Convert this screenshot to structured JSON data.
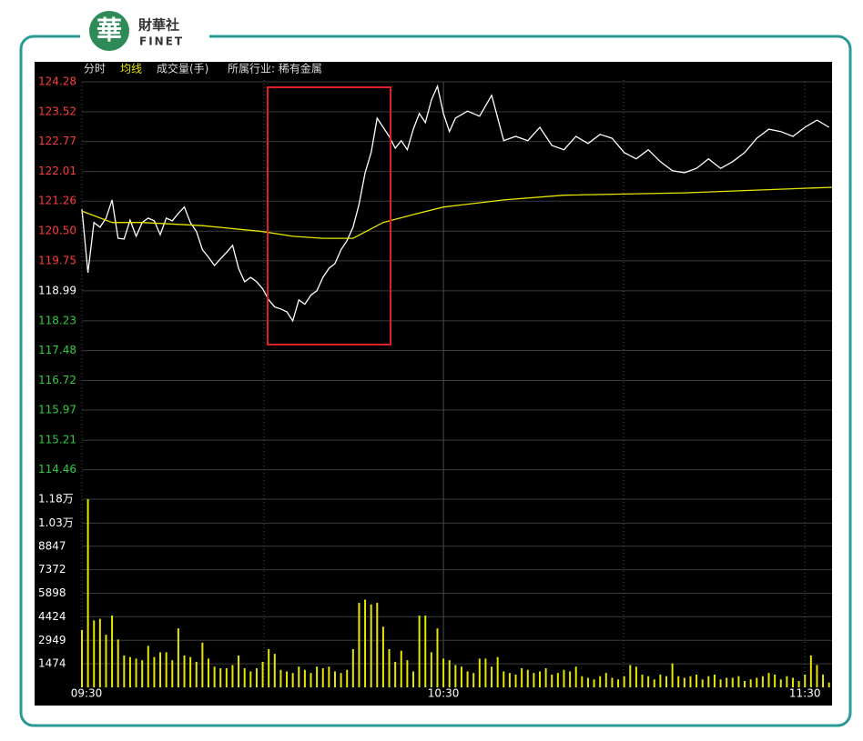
{
  "logo": {
    "emblem": "華",
    "name": "財華社",
    "brand": "FINET"
  },
  "industry": "所属行业: 稀有金属",
  "chart_data": [
    {
      "type": "line",
      "title": "分时",
      "xlim": [
        0,
        124.5
      ],
      "ylim": [
        113.9,
        124.28
      ],
      "yticks": [
        124.28,
        123.52,
        122.77,
        122.01,
        121.26,
        120.5,
        119.75,
        118.99,
        118.23,
        117.48,
        116.72,
        115.97,
        115.21,
        114.46
      ],
      "ytick_labels": [
        "124.28",
        "123.52",
        "122.77",
        "122.01",
        "121.26",
        "120.50",
        "119.75",
        "118.99",
        "118.23",
        "117.48",
        "116.72",
        "115.97",
        "115.21",
        "114.46"
      ],
      "ytick_colors": [
        "#ff3b3b",
        "#ff3b3b",
        "#ff3b3b",
        "#ff3b3b",
        "#ff3b3b",
        "#ff3b3b",
        "#ff3b3b",
        "#ffffff",
        "#2ecc40",
        "#2ecc40",
        "#2ecc40",
        "#2ecc40",
        "#2ecc40",
        "#2ecc40"
      ],
      "grid": true,
      "series": [
        {
          "color": "#ffffff",
          "x": [
            0,
            1,
            2,
            3,
            4,
            5,
            6,
            7,
            8,
            9,
            10,
            11,
            12,
            13,
            14,
            15,
            16,
            17,
            18,
            19,
            20,
            21,
            22,
            23,
            24,
            25,
            26,
            27,
            28,
            29,
            30,
            31,
            32,
            33,
            34,
            35,
            36,
            37,
            38,
            39,
            40,
            41,
            42,
            43,
            44,
            45,
            46,
            47,
            48,
            49,
            50,
            51,
            52,
            53,
            54,
            55,
            56,
            57,
            58,
            59,
            60,
            61,
            62,
            64,
            66,
            68,
            70,
            72,
            74,
            76,
            78,
            80,
            82,
            84,
            86,
            88,
            90,
            92,
            94,
            96,
            98,
            100,
            102,
            104,
            106,
            108,
            110,
            112,
            114,
            116,
            118,
            120,
            122,
            124
          ],
          "values": [
            121.06,
            119.45,
            120.72,
            120.6,
            120.83,
            121.29,
            120.32,
            120.3,
            120.78,
            120.37,
            120.72,
            120.83,
            120.76,
            120.41,
            120.83,
            120.76,
            120.95,
            121.11,
            120.72,
            120.49,
            120.03,
            119.84,
            119.63,
            119.8,
            119.96,
            120.14,
            119.56,
            119.22,
            119.33,
            119.22,
            119.04,
            118.76,
            118.58,
            118.53,
            118.46,
            118.23,
            118.76,
            118.65,
            118.88,
            118.99,
            119.33,
            119.56,
            119.68,
            120.03,
            120.26,
            120.6,
            121.18,
            121.98,
            122.49,
            123.36,
            123.13,
            122.9,
            122.6,
            122.79,
            122.56,
            123.08,
            123.48,
            123.25,
            123.82,
            124.17,
            123.48,
            123.02,
            123.36,
            123.54,
            123.41,
            123.94,
            122.79,
            122.9,
            122.79,
            123.13,
            122.67,
            122.56,
            122.9,
            122.72,
            122.95,
            122.85,
            122.49,
            122.33,
            122.56,
            122.26,
            122.03,
            121.98,
            122.09,
            122.33,
            122.09,
            122.26,
            122.49,
            122.85,
            123.08,
            123.02,
            122.9,
            123.13,
            123.31,
            123.13
          ]
        },
        {
          "name": "均线",
          "color": "#e6e600",
          "x": [
            0,
            5,
            10,
            20,
            30,
            35,
            40,
            45,
            50,
            55,
            60,
            70,
            80,
            100,
            124.5
          ],
          "values": [
            121.01,
            120.72,
            120.72,
            120.64,
            120.49,
            120.37,
            120.32,
            120.32,
            120.72,
            120.92,
            121.11,
            121.29,
            121.41,
            121.47,
            121.61
          ]
        }
      ]
    },
    {
      "type": "bar",
      "title": "成交量(手)",
      "color": "#e6e600",
      "xlim": [
        0,
        124.5
      ],
      "xticks": [
        {
          "value": 0,
          "label": "09:30"
        },
        {
          "value": 60,
          "label": "10:30"
        },
        {
          "value": 120,
          "label": "11:30"
        }
      ],
      "ylim": [
        0,
        11800
      ],
      "yticks": [
        {
          "value": 11800,
          "label": "1.18万"
        },
        {
          "value": 10300,
          "label": "1.03万"
        },
        8847,
        7372,
        5898,
        4424,
        2949,
        1474
      ],
      "grid": true,
      "x": [
        0,
        1,
        2,
        3,
        4,
        5,
        6,
        7,
        8,
        9,
        10,
        11,
        12,
        13,
        14,
        15,
        16,
        17,
        18,
        19,
        20,
        21,
        22,
        23,
        24,
        25,
        26,
        27,
        28,
        29,
        30,
        31,
        32,
        33,
        34,
        35,
        36,
        37,
        38,
        39,
        40,
        41,
        42,
        43,
        44,
        45,
        46,
        47,
        48,
        49,
        50,
        51,
        52,
        53,
        54,
        55,
        56,
        57,
        58,
        59,
        60,
        61,
        62,
        63,
        64,
        65,
        66,
        67,
        68,
        69,
        70,
        71,
        72,
        73,
        74,
        75,
        76,
        77,
        78,
        79,
        80,
        81,
        82,
        83,
        84,
        85,
        86,
        87,
        88,
        89,
        90,
        91,
        92,
        93,
        94,
        95,
        96,
        97,
        98,
        99,
        100,
        101,
        102,
        103,
        104,
        105,
        106,
        107,
        108,
        109,
        110,
        111,
        112,
        113,
        114,
        115,
        116,
        117,
        118,
        119,
        120,
        121,
        122,
        123,
        124
      ],
      "values": [
        3600,
        11800,
        4200,
        4300,
        3300,
        4500,
        3000,
        2000,
        1900,
        1800,
        1700,
        2600,
        1900,
        2200,
        2200,
        1700,
        3700,
        2000,
        1900,
        1600,
        2800,
        1800,
        1300,
        1200,
        1200,
        1400,
        2000,
        1200,
        1000,
        1200,
        1600,
        2400,
        2100,
        1100,
        1000,
        900,
        1300,
        1100,
        900,
        1300,
        1200,
        1300,
        1000,
        900,
        1100,
        2400,
        5300,
        5500,
        5200,
        5300,
        3800,
        2400,
        1600,
        2300,
        1700,
        1000,
        4500,
        4500,
        2200,
        3700,
        1800,
        1700,
        1400,
        1300,
        1000,
        900,
        1800,
        1800,
        1300,
        1900,
        1000,
        900,
        800,
        1200,
        1100,
        900,
        1000,
        1200,
        800,
        900,
        1100,
        1000,
        1300,
        700,
        600,
        500,
        700,
        900,
        600,
        500,
        700,
        1400,
        1300,
        800,
        700,
        500,
        800,
        700,
        1500,
        700,
        600,
        700,
        800,
        500,
        700,
        800,
        500,
        600,
        600,
        700,
        400,
        500,
        600,
        700,
        900,
        800,
        500,
        700,
        600,
        400,
        800,
        2000,
        1400,
        800,
        300
      ]
    }
  ]
}
